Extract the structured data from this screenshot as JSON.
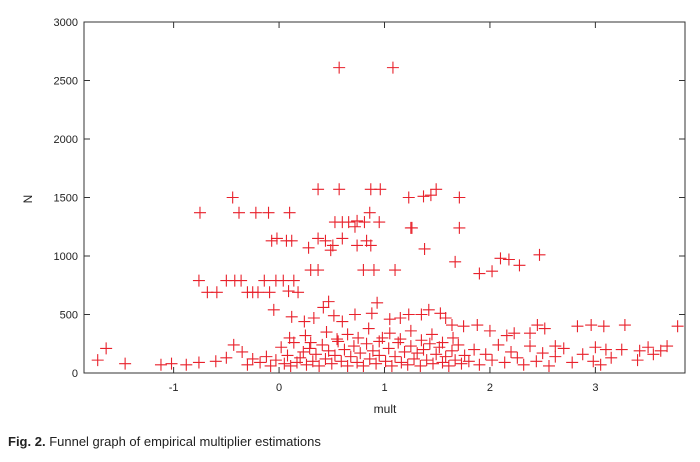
{
  "caption": {
    "label": "Fig. 2.",
    "text": "Funnel graph of empirical multiplier estimations"
  },
  "chart_data": {
    "type": "scatter",
    "title": "",
    "xlabel": "mult",
    "ylabel": "N",
    "xlim": [
      -1.85,
      3.85
    ],
    "ylim": [
      0,
      3000
    ],
    "xticks": [
      -1,
      0,
      1,
      2,
      3
    ],
    "yticks": [
      0,
      500,
      1000,
      1500,
      2000,
      2500,
      3000
    ],
    "grid": false,
    "marker": "plus",
    "marker_color": "#e8212b",
    "points": [
      [
        0.57,
        2610
      ],
      [
        1.08,
        2610
      ],
      [
        0.37,
        1570
      ],
      [
        0.57,
        1570
      ],
      [
        0.87,
        1570
      ],
      [
        0.96,
        1570
      ],
      [
        1.23,
        1500
      ],
      [
        1.37,
        1510
      ],
      [
        1.44,
        1520
      ],
      [
        1.49,
        1570
      ],
      [
        1.71,
        1500
      ],
      [
        -0.44,
        1500
      ],
      [
        -0.75,
        1370
      ],
      [
        -0.38,
        1370
      ],
      [
        -0.22,
        1370
      ],
      [
        -0.1,
        1370
      ],
      [
        0.1,
        1370
      ],
      [
        0.53,
        1290
      ],
      [
        0.6,
        1290
      ],
      [
        0.66,
        1290
      ],
      [
        0.74,
        1300
      ],
      [
        0.81,
        1290
      ],
      [
        0.86,
        1370
      ],
      [
        0.95,
        1290
      ],
      [
        -0.07,
        1130
      ],
      [
        -0.02,
        1150
      ],
      [
        0.07,
        1130
      ],
      [
        0.12,
        1130
      ],
      [
        0.28,
        1070
      ],
      [
        0.37,
        1150
      ],
      [
        0.44,
        1130
      ],
      [
        0.49,
        1050
      ],
      [
        0.51,
        1090
      ],
      [
        0.6,
        1150
      ],
      [
        0.72,
        1250
      ],
      [
        0.74,
        1090
      ],
      [
        0.83,
        1130
      ],
      [
        0.87,
        1090
      ],
      [
        1.25,
        1240
      ],
      [
        1.26,
        1240
      ],
      [
        1.38,
        1060
      ],
      [
        1.67,
        950
      ],
      [
        1.71,
        1240
      ],
      [
        1.9,
        850
      ],
      [
        2.02,
        870
      ],
      [
        2.1,
        980
      ],
      [
        2.18,
        970
      ],
      [
        2.28,
        920
      ],
      [
        2.47,
        1010
      ],
      [
        0.3,
        880
      ],
      [
        0.37,
        880
      ],
      [
        0.8,
        880
      ],
      [
        0.9,
        880
      ],
      [
        1.1,
        880
      ],
      [
        -0.76,
        790
      ],
      [
        -0.68,
        690
      ],
      [
        -0.59,
        690
      ],
      [
        -0.5,
        790
      ],
      [
        -0.42,
        790
      ],
      [
        -0.36,
        790
      ],
      [
        -0.3,
        690
      ],
      [
        -0.25,
        690
      ],
      [
        -0.2,
        690
      ],
      [
        -0.14,
        790
      ],
      [
        -0.09,
        690
      ],
      [
        -0.03,
        790
      ],
      [
        0.04,
        790
      ],
      [
        0.09,
        700
      ],
      [
        0.14,
        790
      ],
      [
        0.18,
        690
      ],
      [
        -0.05,
        540
      ],
      [
        0.12,
        480
      ],
      [
        0.24,
        440
      ],
      [
        0.33,
        470
      ],
      [
        0.42,
        560
      ],
      [
        0.47,
        610
      ],
      [
        0.52,
        490
      ],
      [
        0.6,
        440
      ],
      [
        0.72,
        500
      ],
      [
        0.88,
        510
      ],
      [
        0.93,
        600
      ],
      [
        1.05,
        460
      ],
      [
        1.15,
        470
      ],
      [
        1.23,
        500
      ],
      [
        1.35,
        500
      ],
      [
        1.42,
        540
      ],
      [
        1.53,
        510
      ],
      [
        1.58,
        470
      ],
      [
        1.64,
        410
      ],
      [
        1.75,
        400
      ],
      [
        1.88,
        410
      ],
      [
        2.0,
        360
      ],
      [
        2.16,
        320
      ],
      [
        2.23,
        340
      ],
      [
        2.38,
        340
      ],
      [
        2.45,
        410
      ],
      [
        2.52,
        380
      ],
      [
        2.62,
        230
      ],
      [
        2.83,
        400
      ],
      [
        2.96,
        410
      ],
      [
        3.08,
        400
      ],
      [
        3.28,
        410
      ],
      [
        3.0,
        220
      ],
      [
        3.1,
        200
      ],
      [
        3.42,
        190
      ],
      [
        3.5,
        220
      ],
      [
        3.62,
        190
      ],
      [
        3.68,
        230
      ],
      [
        3.78,
        400
      ],
      [
        -1.72,
        110
      ],
      [
        -1.64,
        210
      ],
      [
        -1.46,
        80
      ],
      [
        -1.12,
        70
      ],
      [
        -1.02,
        80
      ],
      [
        -0.88,
        70
      ],
      [
        -0.76,
        90
      ],
      [
        -0.6,
        100
      ],
      [
        -0.5,
        130
      ],
      [
        -0.43,
        240
      ],
      [
        -0.35,
        180
      ],
      [
        -0.3,
        70
      ],
      [
        -0.25,
        120
      ],
      [
        -0.18,
        90
      ],
      [
        -0.12,
        140
      ],
      [
        -0.08,
        60
      ],
      [
        -0.03,
        110
      ],
      [
        0.02,
        220
      ],
      [
        0.05,
        80
      ],
      [
        0.08,
        150
      ],
      [
        0.11,
        60
      ],
      [
        0.14,
        260
      ],
      [
        0.17,
        90
      ],
      [
        0.2,
        130
      ],
      [
        0.23,
        180
      ],
      [
        0.26,
        70
      ],
      [
        0.29,
        210
      ],
      [
        0.32,
        100
      ],
      [
        0.35,
        160
      ],
      [
        0.38,
        60
      ],
      [
        0.41,
        240
      ],
      [
        0.44,
        120
      ],
      [
        0.47,
        190
      ],
      [
        0.5,
        80
      ],
      [
        0.53,
        150
      ],
      [
        0.56,
        270
      ],
      [
        0.59,
        100
      ],
      [
        0.62,
        200
      ],
      [
        0.65,
        60
      ],
      [
        0.68,
        140
      ],
      [
        0.71,
        230
      ],
      [
        0.74,
        90
      ],
      [
        0.77,
        170
      ],
      [
        0.8,
        60
      ],
      [
        0.83,
        250
      ],
      [
        0.86,
        120
      ],
      [
        0.89,
        190
      ],
      [
        0.92,
        80
      ],
      [
        0.95,
        150
      ],
      [
        0.98,
        300
      ],
      [
        1.01,
        100
      ],
      [
        1.04,
        210
      ],
      [
        1.07,
        60
      ],
      [
        1.1,
        140
      ],
      [
        1.13,
        260
      ],
      [
        1.16,
        90
      ],
      [
        1.19,
        180
      ],
      [
        1.22,
        70
      ],
      [
        1.25,
        230
      ],
      [
        1.28,
        120
      ],
      [
        1.31,
        170
      ],
      [
        1.34,
        60
      ],
      [
        1.37,
        200
      ],
      [
        1.4,
        110
      ],
      [
        1.43,
        250
      ],
      [
        1.46,
        80
      ],
      [
        1.49,
        160
      ],
      [
        1.52,
        220
      ],
      [
        1.55,
        90
      ],
      [
        1.58,
        140
      ],
      [
        1.61,
        60
      ],
      [
        1.64,
        190
      ],
      [
        1.67,
        110
      ],
      [
        1.7,
        240
      ],
      [
        1.73,
        80
      ],
      [
        1.76,
        150
      ],
      [
        1.8,
        100
      ],
      [
        1.85,
        200
      ],
      [
        1.9,
        70
      ],
      [
        1.96,
        160
      ],
      [
        2.02,
        110
      ],
      [
        2.08,
        240
      ],
      [
        2.14,
        90
      ],
      [
        2.2,
        180
      ],
      [
        2.26,
        130
      ],
      [
        2.32,
        70
      ],
      [
        2.38,
        230
      ],
      [
        2.44,
        100
      ],
      [
        2.5,
        170
      ],
      [
        2.56,
        60
      ],
      [
        2.62,
        140
      ],
      [
        2.7,
        210
      ],
      [
        2.78,
        90
      ],
      [
        2.88,
        160
      ],
      [
        2.98,
        100
      ],
      [
        3.05,
        70
      ],
      [
        3.15,
        130
      ],
      [
        3.25,
        200
      ],
      [
        3.4,
        110
      ],
      [
        3.55,
        160
      ],
      [
        0.1,
        300
      ],
      [
        0.25,
        320
      ],
      [
        0.45,
        350
      ],
      [
        0.65,
        330
      ],
      [
        0.85,
        380
      ],
      [
        1.05,
        340
      ],
      [
        1.25,
        360
      ],
      [
        1.45,
        330
      ],
      [
        1.65,
        300
      ],
      [
        0.3,
        260
      ],
      [
        0.55,
        290
      ],
      [
        0.75,
        300
      ],
      [
        0.95,
        270
      ],
      [
        1.15,
        290
      ],
      [
        1.35,
        280
      ],
      [
        1.55,
        260
      ]
    ]
  }
}
